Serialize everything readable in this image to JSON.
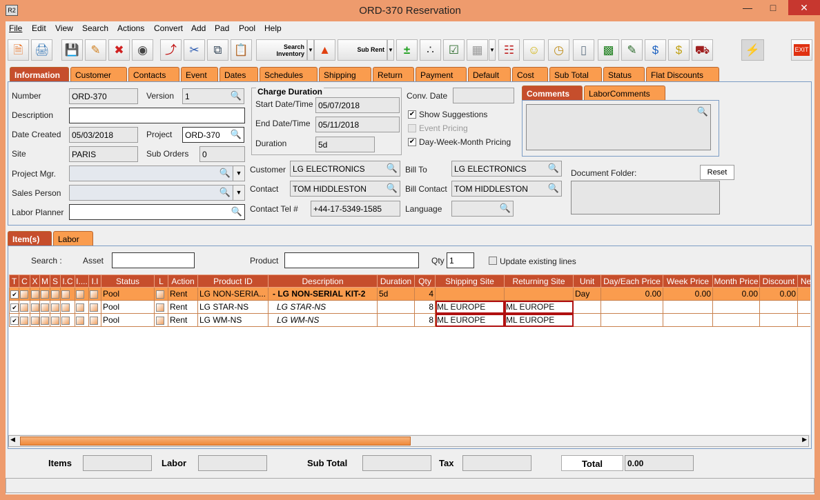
{
  "window": {
    "title": "ORD-370 Reservation",
    "app_icon": "R2"
  },
  "menu": [
    "File",
    "Edit",
    "View",
    "Search",
    "Actions",
    "Convert",
    "Add",
    "Pad",
    "Pool",
    "Help"
  ],
  "toolbar": {
    "search_inventory": "Search Inventory",
    "sub_rent": "Sub Rent",
    "exit": "EXIT"
  },
  "tabs": [
    "Information",
    "Customer",
    "Contacts",
    "Event",
    "Dates",
    "Schedules",
    "Shipping",
    "Return",
    "Payment",
    "Default",
    "Cost",
    "Sub Total",
    "Status",
    "Flat Discounts"
  ],
  "info": {
    "number_label": "Number",
    "number": "ORD-370",
    "version_label": "Version",
    "version": "1",
    "description_label": "Description",
    "description": "",
    "date_created_label": "Date Created",
    "date_created": "05/03/2018",
    "project_label": "Project",
    "project": "ORD-370",
    "site_label": "Site",
    "site": "PARIS",
    "sub_orders_label": "Sub Orders",
    "sub_orders": "0",
    "project_mgr_label": "Project Mgr.",
    "sales_person_label": "Sales Person",
    "labor_planner_label": "Labor Planner",
    "charge_duration_label": "Charge Duration",
    "start_label": "Start Date/Time",
    "start": "05/07/2018",
    "end_label": "End Date/Time",
    "end": "05/11/2018",
    "duration_label": "Duration",
    "duration": "5d",
    "conv_date_label": "Conv. Date",
    "show_suggestions": "Show Suggestions",
    "event_pricing": "Event Pricing",
    "dwm_pricing": "Day-Week-Month Pricing",
    "customer_label": "Customer",
    "customer": "LG ELECTRONICS",
    "contact_label": "Contact",
    "contact": "TOM HIDDLESTON",
    "contact_tel_label": "Contact Tel #",
    "contact_tel": "+44-17-5349-1585",
    "bill_to_label": "Bill To",
    "bill_to": "LG ELECTRONICS",
    "bill_contact_label": "Bill Contact",
    "bill_contact": "TOM HIDDLESTON",
    "language_label": "Language",
    "comments_tab": "Comments",
    "labor_comments_tab": "LaborComments",
    "document_folder_label": "Document Folder:",
    "reset": "Reset"
  },
  "items": {
    "tabs": [
      "Item(s)",
      "Labor"
    ],
    "search_label": "Search :",
    "asset_label": "Asset",
    "product_label": "Product",
    "qty_label": "Qty",
    "qty": "1",
    "update_existing": "Update existing lines",
    "columns": [
      "T",
      "C",
      "X",
      "M",
      "S",
      "I.C",
      "I....",
      "I.I",
      "Status",
      "L",
      "Action",
      "Product ID",
      "Description",
      "Duration",
      "Qty",
      "Shipping Site",
      "Returning Site",
      "Unit",
      "Day/Each Price",
      "Week Price",
      "Month Price",
      "Discount",
      "Ne"
    ],
    "rows": [
      {
        "status": "Pool",
        "action": "Rent",
        "product_id": "LG NON-SERIA...",
        "description": "-  LG NON-SERIAL KIT-2",
        "duration": "5d",
        "qty": "4",
        "ship": "",
        "ret": "",
        "unit": "Day",
        "day": "0.00",
        "week": "0.00",
        "month": "0.00",
        "discount": "0.00"
      },
      {
        "status": "Pool",
        "action": "Rent",
        "product_id": "LG STAR-NS",
        "description": "LG STAR-NS",
        "duration": "",
        "qty": "8",
        "ship": "ML EUROPE",
        "ret": "ML EUROPE",
        "unit": "",
        "day": "",
        "week": "",
        "month": "",
        "discount": ""
      },
      {
        "status": "Pool",
        "action": "Rent",
        "product_id": "LG WM-NS",
        "description": "LG WM-NS",
        "duration": "",
        "qty": "8",
        "ship": "ML EUROPE",
        "ret": "ML EUROPE",
        "unit": "",
        "day": "",
        "week": "",
        "month": "",
        "discount": ""
      }
    ]
  },
  "footer": {
    "items_label": "Items",
    "labor_label": "Labor",
    "subtotal_label": "Sub Total",
    "tax_label": "Tax",
    "total_label": "Total",
    "total": "0.00"
  }
}
